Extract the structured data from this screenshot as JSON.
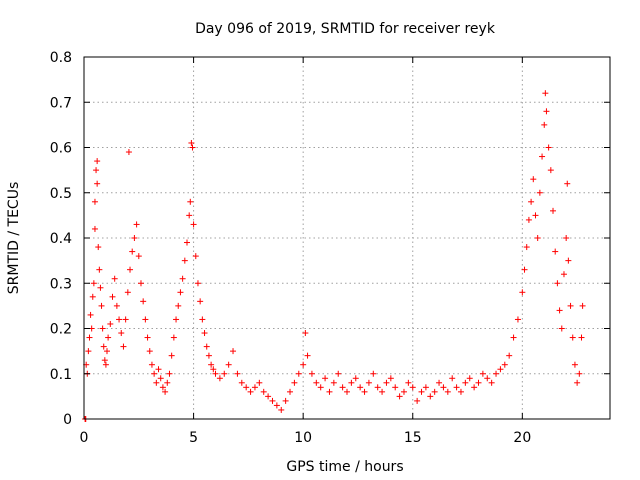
{
  "chart_data": {
    "type": "scatter",
    "title": "Day 096 of 2019, SRMTID for receiver reyk",
    "xlabel": "GPS time / hours",
    "ylabel": "SRMTID / TECUs",
    "xlim": [
      0,
      24
    ],
    "ylim": [
      0,
      0.8
    ],
    "xticks": [
      0,
      5,
      10,
      15,
      20
    ],
    "xtick_labels": [
      "0",
      "5",
      "10",
      "15",
      "20"
    ],
    "yticks": [
      0,
      0.1,
      0.2,
      0.3,
      0.4,
      0.5,
      0.6,
      0.7,
      0.8
    ],
    "ytick_labels": [
      "0",
      "0.1",
      "0.2",
      "0.3",
      "0.4",
      "0.5",
      "0.6",
      "0.7",
      "0.8"
    ],
    "grid": true,
    "marker": "+",
    "color": "#ff0000",
    "series": [
      {
        "name": "SRMTID",
        "points": [
          [
            0.05,
            0.0
          ],
          [
            0.08,
            0.0
          ],
          [
            0.1,
            0.12
          ],
          [
            0.15,
            0.1
          ],
          [
            0.2,
            0.15
          ],
          [
            0.25,
            0.18
          ],
          [
            0.3,
            0.23
          ],
          [
            0.35,
            0.2
          ],
          [
            0.4,
            0.27
          ],
          [
            0.45,
            0.3
          ],
          [
            0.5,
            0.42
          ],
          [
            0.5,
            0.48
          ],
          [
            0.55,
            0.55
          ],
          [
            0.6,
            0.57
          ],
          [
            0.6,
            0.52
          ],
          [
            0.65,
            0.38
          ],
          [
            0.7,
            0.33
          ],
          [
            0.75,
            0.29
          ],
          [
            0.8,
            0.25
          ],
          [
            0.85,
            0.2
          ],
          [
            0.9,
            0.16
          ],
          [
            0.95,
            0.13
          ],
          [
            1.0,
            0.12
          ],
          [
            1.05,
            0.15
          ],
          [
            1.1,
            0.18
          ],
          [
            1.2,
            0.21
          ],
          [
            1.3,
            0.27
          ],
          [
            1.4,
            0.31
          ],
          [
            1.5,
            0.25
          ],
          [
            1.6,
            0.22
          ],
          [
            1.7,
            0.19
          ],
          [
            1.8,
            0.16
          ],
          [
            1.9,
            0.22
          ],
          [
            2.0,
            0.28
          ],
          [
            2.05,
            0.59
          ],
          [
            2.1,
            0.33
          ],
          [
            2.2,
            0.37
          ],
          [
            2.3,
            0.4
          ],
          [
            2.4,
            0.43
          ],
          [
            2.5,
            0.36
          ],
          [
            2.6,
            0.3
          ],
          [
            2.7,
            0.26
          ],
          [
            2.8,
            0.22
          ],
          [
            2.9,
            0.18
          ],
          [
            3.0,
            0.15
          ],
          [
            3.1,
            0.12
          ],
          [
            3.2,
            0.1
          ],
          [
            3.3,
            0.08
          ],
          [
            3.4,
            0.11
          ],
          [
            3.5,
            0.09
          ],
          [
            3.6,
            0.07
          ],
          [
            3.7,
            0.06
          ],
          [
            3.8,
            0.08
          ],
          [
            3.9,
            0.1
          ],
          [
            4.0,
            0.14
          ],
          [
            4.1,
            0.18
          ],
          [
            4.2,
            0.22
          ],
          [
            4.3,
            0.25
          ],
          [
            4.4,
            0.28
          ],
          [
            4.5,
            0.31
          ],
          [
            4.6,
            0.35
          ],
          [
            4.7,
            0.39
          ],
          [
            4.8,
            0.45
          ],
          [
            4.85,
            0.48
          ],
          [
            4.9,
            0.61
          ],
          [
            4.95,
            0.6
          ],
          [
            5.0,
            0.43
          ],
          [
            5.1,
            0.36
          ],
          [
            5.2,
            0.3
          ],
          [
            5.3,
            0.26
          ],
          [
            5.4,
            0.22
          ],
          [
            5.5,
            0.19
          ],
          [
            5.6,
            0.16
          ],
          [
            5.7,
            0.14
          ],
          [
            5.8,
            0.12
          ],
          [
            5.9,
            0.11
          ],
          [
            6.0,
            0.1
          ],
          [
            6.2,
            0.09
          ],
          [
            6.4,
            0.1
          ],
          [
            6.6,
            0.12
          ],
          [
            6.8,
            0.15
          ],
          [
            7.0,
            0.1
          ],
          [
            7.2,
            0.08
          ],
          [
            7.4,
            0.07
          ],
          [
            7.6,
            0.06
          ],
          [
            7.8,
            0.07
          ],
          [
            8.0,
            0.08
          ],
          [
            8.2,
            0.06
          ],
          [
            8.4,
            0.05
          ],
          [
            8.6,
            0.04
          ],
          [
            8.8,
            0.03
          ],
          [
            9.0,
            0.02
          ],
          [
            9.2,
            0.04
          ],
          [
            9.4,
            0.06
          ],
          [
            9.6,
            0.08
          ],
          [
            9.8,
            0.1
          ],
          [
            10.0,
            0.12
          ],
          [
            10.1,
            0.19
          ],
          [
            10.2,
            0.14
          ],
          [
            10.4,
            0.1
          ],
          [
            10.6,
            0.08
          ],
          [
            10.8,
            0.07
          ],
          [
            11.0,
            0.09
          ],
          [
            11.2,
            0.06
          ],
          [
            11.4,
            0.08
          ],
          [
            11.6,
            0.1
          ],
          [
            11.8,
            0.07
          ],
          [
            12.0,
            0.06
          ],
          [
            12.2,
            0.08
          ],
          [
            12.4,
            0.09
          ],
          [
            12.6,
            0.07
          ],
          [
            12.8,
            0.06
          ],
          [
            13.0,
            0.08
          ],
          [
            13.2,
            0.1
          ],
          [
            13.4,
            0.07
          ],
          [
            13.6,
            0.06
          ],
          [
            13.8,
            0.08
          ],
          [
            14.0,
            0.09
          ],
          [
            14.2,
            0.07
          ],
          [
            14.4,
            0.05
          ],
          [
            14.6,
            0.06
          ],
          [
            14.8,
            0.08
          ],
          [
            15.0,
            0.07
          ],
          [
            15.2,
            0.04
          ],
          [
            15.4,
            0.06
          ],
          [
            15.6,
            0.07
          ],
          [
            15.8,
            0.05
          ],
          [
            16.0,
            0.06
          ],
          [
            16.2,
            0.08
          ],
          [
            16.4,
            0.07
          ],
          [
            16.6,
            0.06
          ],
          [
            16.8,
            0.09
          ],
          [
            17.0,
            0.07
          ],
          [
            17.2,
            0.06
          ],
          [
            17.4,
            0.08
          ],
          [
            17.6,
            0.09
          ],
          [
            17.8,
            0.07
          ],
          [
            18.0,
            0.08
          ],
          [
            18.2,
            0.1
          ],
          [
            18.4,
            0.09
          ],
          [
            18.6,
            0.08
          ],
          [
            18.8,
            0.1
          ],
          [
            19.0,
            0.11
          ],
          [
            19.2,
            0.12
          ],
          [
            19.4,
            0.14
          ],
          [
            19.6,
            0.18
          ],
          [
            19.8,
            0.22
          ],
          [
            20.0,
            0.28
          ],
          [
            20.1,
            0.33
          ],
          [
            20.2,
            0.38
          ],
          [
            20.3,
            0.44
          ],
          [
            20.4,
            0.48
          ],
          [
            20.5,
            0.53
          ],
          [
            20.6,
            0.45
          ],
          [
            20.7,
            0.4
          ],
          [
            20.8,
            0.5
          ],
          [
            20.9,
            0.58
          ],
          [
            21.0,
            0.65
          ],
          [
            21.05,
            0.72
          ],
          [
            21.1,
            0.68
          ],
          [
            21.2,
            0.6
          ],
          [
            21.3,
            0.55
          ],
          [
            21.4,
            0.46
          ],
          [
            21.5,
            0.37
          ],
          [
            21.6,
            0.3
          ],
          [
            21.7,
            0.24
          ],
          [
            21.8,
            0.2
          ],
          [
            21.9,
            0.32
          ],
          [
            22.0,
            0.4
          ],
          [
            22.05,
            0.52
          ],
          [
            22.1,
            0.35
          ],
          [
            22.2,
            0.25
          ],
          [
            22.3,
            0.18
          ],
          [
            22.4,
            0.12
          ],
          [
            22.5,
            0.08
          ],
          [
            22.6,
            0.1
          ],
          [
            22.7,
            0.18
          ],
          [
            22.75,
            0.25
          ]
        ]
      }
    ]
  }
}
